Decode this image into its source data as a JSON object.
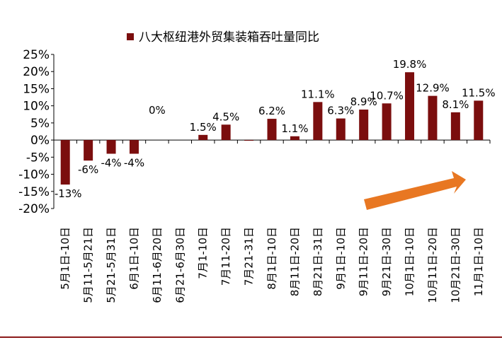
{
  "chart_data": {
    "type": "bar",
    "title": "八大枢纽港外贸集装箱吞吐量同比",
    "legend": "八大枢纽港外贸集装箱吞吐量同比",
    "bar_color": "#7b0e0e",
    "arrow_color": "#e87722",
    "categories": [
      "5月1日-10日",
      "5月11-5月21日",
      "5月21-5月31日",
      "6月1日-10日",
      "6月11-6月20日",
      "6月21-6月30日",
      "7月1-10日",
      "7月11-20日",
      "7月21-31日",
      "8月1日-10日",
      "8月11日-20日",
      "8月21日-31日",
      "9月1日-10日",
      "9月11日-20日",
      "9月21日-30日",
      "10月1日-10日",
      "10月11日-20日",
      "10月21日-30日",
      "11月1日-10日"
    ],
    "values": [
      -13,
      -6,
      -4,
      -4,
      0,
      0,
      1.5,
      4.5,
      -0.2,
      6.2,
      1.1,
      11.1,
      6.3,
      8.9,
      10.7,
      19.8,
      12.9,
      8.1,
      11.5
    ],
    "data_labels": [
      "-13%",
      "-6%",
      "-4%",
      "-4%",
      "0%",
      "",
      "1.5%",
      "4.5%",
      "",
      "6.2%",
      "1.1%",
      "11.1%",
      "6.3%",
      "8.9%",
      "10.7%",
      "19.8%",
      "12.9%",
      "8.1%",
      "11.5%"
    ],
    "yticks": [
      "25%",
      "20%",
      "15%",
      "10%",
      "5%",
      "0%",
      "-5%",
      "-10%",
      "-15%",
      "-20%"
    ],
    "ylim": [
      -20,
      25
    ]
  }
}
